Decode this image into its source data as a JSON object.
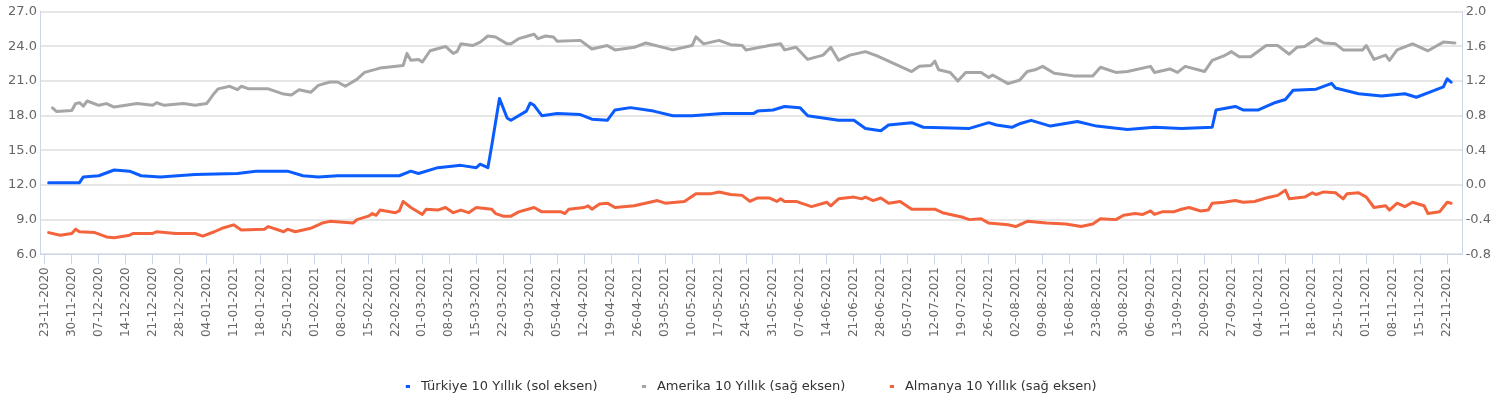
{
  "chart_data": {
    "type": "line",
    "legend": "bottom",
    "grid": "y",
    "line_style": "solid",
    "xlim": [
      "2020-11-22",
      "2021-11-26"
    ],
    "xticks": [
      {
        "value": "2020-11-23",
        "label": "23-11-2020"
      },
      {
        "value": "2020-11-30",
        "label": "30-11-2020"
      },
      {
        "value": "2020-12-07",
        "label": "07-12-2020"
      },
      {
        "value": "2020-12-14",
        "label": "14-12-2020"
      },
      {
        "value": "2020-12-21",
        "label": "21-12-2020"
      },
      {
        "value": "2020-12-28",
        "label": "28-12-2020"
      },
      {
        "value": "2021-01-04",
        "label": "04-01-2021"
      },
      {
        "value": "2021-01-11",
        "label": "11-01-2021"
      },
      {
        "value": "2021-01-18",
        "label": "18-01-2021"
      },
      {
        "value": "2021-01-25",
        "label": "25-01-2021"
      },
      {
        "value": "2021-02-01",
        "label": "01-02-2021"
      },
      {
        "value": "2021-02-08",
        "label": "08-02-2021"
      },
      {
        "value": "2021-02-15",
        "label": "15-02-2021"
      },
      {
        "value": "2021-02-22",
        "label": "22-02-2021"
      },
      {
        "value": "2021-03-01",
        "label": "01-03-2021"
      },
      {
        "value": "2021-03-08",
        "label": "08-03-2021"
      },
      {
        "value": "2021-03-15",
        "label": "15-03-2021"
      },
      {
        "value": "2021-03-22",
        "label": "22-03-2021"
      },
      {
        "value": "2021-03-29",
        "label": "29-03-2021"
      },
      {
        "value": "2021-04-05",
        "label": "05-04-2021"
      },
      {
        "value": "2021-04-12",
        "label": "12-04-2021"
      },
      {
        "value": "2021-04-19",
        "label": "19-04-2021"
      },
      {
        "value": "2021-04-26",
        "label": "26-04-2021"
      },
      {
        "value": "2021-05-03",
        "label": "03-05-2021"
      },
      {
        "value": "2021-05-10",
        "label": "10-05-2021"
      },
      {
        "value": "2021-05-17",
        "label": "17-05-2021"
      },
      {
        "value": "2021-05-24",
        "label": "24-05-2021"
      },
      {
        "value": "2021-05-31",
        "label": "31-05-2021"
      },
      {
        "value": "2021-06-07",
        "label": "07-06-2021"
      },
      {
        "value": "2021-06-14",
        "label": "14-06-2021"
      },
      {
        "value": "2021-06-21",
        "label": "21-06-2021"
      },
      {
        "value": "2021-06-28",
        "label": "28-06-2021"
      },
      {
        "value": "2021-07-05",
        "label": "05-07-2021"
      },
      {
        "value": "2021-07-12",
        "label": "12-07-2021"
      },
      {
        "value": "2021-07-19",
        "label": "19-07-2021"
      },
      {
        "value": "2021-07-26",
        "label": "26-07-2021"
      },
      {
        "value": "2021-08-02",
        "label": "02-08-2021"
      },
      {
        "value": "2021-08-09",
        "label": "09-08-2021"
      },
      {
        "value": "2021-08-16",
        "label": "16-08-2021"
      },
      {
        "value": "2021-08-23",
        "label": "23-08-2021"
      },
      {
        "value": "2021-08-30",
        "label": "30-08-2021"
      },
      {
        "value": "2021-09-06",
        "label": "06-09-2021"
      },
      {
        "value": "2021-09-13",
        "label": "13-09-2021"
      },
      {
        "value": "2021-09-20",
        "label": "20-09-2021"
      },
      {
        "value": "2021-09-27",
        "label": "27-09-2021"
      },
      {
        "value": "2021-10-04",
        "label": "04-10-2021"
      },
      {
        "value": "2021-10-11",
        "label": "11-10-2021"
      },
      {
        "value": "2021-10-18",
        "label": "18-10-2021"
      },
      {
        "value": "2021-10-25",
        "label": "25-10-2021"
      },
      {
        "value": "2021-11-01",
        "label": "01-11-2021"
      },
      {
        "value": "2021-11-08",
        "label": "08-11-2021"
      },
      {
        "value": "2021-11-15",
        "label": "15-11-2021"
      },
      {
        "value": "2021-11-22",
        "label": "22-11-2021"
      }
    ],
    "ylim": [
      6,
      27
    ],
    "yticks": [
      {
        "value": 6,
        "label": "6.0"
      },
      {
        "value": 9,
        "label": "9.0"
      },
      {
        "value": 12,
        "label": "12.0"
      },
      {
        "value": 15,
        "label": "15.0"
      },
      {
        "value": 18,
        "label": "18.0"
      },
      {
        "value": 21,
        "label": "21.0"
      },
      {
        "value": 24,
        "label": "24.0"
      },
      {
        "value": 27,
        "label": "27.0"
      }
    ],
    "y2lim": [
      -0.8,
      2.0
    ],
    "y2ticks": [
      {
        "value": -0.8,
        "label": "-0.8"
      },
      {
        "value": -0.4,
        "label": "-0.4"
      },
      {
        "value": 0,
        "label": "0.0"
      },
      {
        "value": 0.4,
        "label": "0.4"
      },
      {
        "value": 0.8,
        "label": "0.8"
      },
      {
        "value": 1.2,
        "label": "1.2"
      },
      {
        "value": 1.6,
        "label": "1.6"
      },
      {
        "value": 2.0,
        "label": "2.0"
      }
    ],
    "series": [
      {
        "name": "Türkiye 10 Yıllık (sol eksen)",
        "color": "#0a5cff",
        "x": [
          "2020-11-24",
          "2020-12-02",
          "2020-12-03",
          "2020-12-07",
          "2020-12-11",
          "2020-12-15",
          "2020-12-18",
          "2020-12-23",
          "2021-01-01",
          "2021-01-12",
          "2021-01-17",
          "2021-01-25",
          "2021-01-29",
          "2021-02-02",
          "2021-02-07",
          "2021-02-23",
          "2021-02-26",
          "2021-02-28",
          "2021-03-05",
          "2021-03-11",
          "2021-03-15",
          "2021-03-16",
          "2021-03-18",
          "2021-03-19",
          "2021-03-21",
          "2021-03-23",
          "2021-03-24",
          "2021-03-28",
          "2021-03-29",
          "2021-03-30",
          "2021-04-01",
          "2021-04-05",
          "2021-04-11",
          "2021-04-14",
          "2021-04-18",
          "2021-04-20",
          "2021-04-24",
          "2021-04-30",
          "2021-05-05",
          "2021-05-10",
          "2021-05-18",
          "2021-05-26",
          "2021-05-27",
          "2021-05-31",
          "2021-06-03",
          "2021-06-07",
          "2021-06-09",
          "2021-06-13",
          "2021-06-17",
          "2021-06-21",
          "2021-06-24",
          "2021-06-28",
          "2021-06-30",
          "2021-07-06",
          "2021-07-09",
          "2021-07-21",
          "2021-07-26",
          "2021-07-28",
          "2021-08-01",
          "2021-08-03",
          "2021-08-06",
          "2021-08-11",
          "2021-08-18",
          "2021-08-23",
          "2021-08-31",
          "2021-09-07",
          "2021-09-14",
          "2021-09-22",
          "2021-09-23",
          "2021-09-28",
          "2021-09-30",
          "2021-10-04",
          "2021-10-08",
          "2021-10-11",
          "2021-10-13",
          "2021-10-19",
          "2021-10-23",
          "2021-10-24",
          "2021-10-30",
          "2021-11-05",
          "2021-11-11",
          "2021-11-14",
          "2021-11-18",
          "2021-11-21",
          "2021-11-22",
          "2021-11-23"
        ],
        "values": [
          12.2,
          12.2,
          12.7,
          12.8,
          13.3,
          13.2,
          12.8,
          12.7,
          12.9,
          13.0,
          13.2,
          13.2,
          12.8,
          12.7,
          12.8,
          12.8,
          13.2,
          13.0,
          13.5,
          13.7,
          13.5,
          13.8,
          13.5,
          15.4,
          19.5,
          17.8,
          17.6,
          18.4,
          19.1,
          18.9,
          18.0,
          18.2,
          18.1,
          17.7,
          17.6,
          18.5,
          18.7,
          18.4,
          18.0,
          18.0,
          18.2,
          18.2,
          18.4,
          18.5,
          18.8,
          18.7,
          18.0,
          17.8,
          17.6,
          17.6,
          16.9,
          16.7,
          17.2,
          17.4,
          17.0,
          16.9,
          17.4,
          17.2,
          17.0,
          17.3,
          17.6,
          17.1,
          17.5,
          17.1,
          16.8,
          17.0,
          16.9,
          17.0,
          18.5,
          18.8,
          18.5,
          18.5,
          19.1,
          19.4,
          20.2,
          20.3,
          20.8,
          20.4,
          19.9,
          19.7,
          19.9,
          19.6,
          20.1,
          20.5,
          21.2,
          20.9
        ]
      },
      {
        "name": "Amerika 10 Yıllık (sağ eksen)",
        "color": "#a6a6a6",
        "axis": "y2",
        "x": [
          "2020-11-25",
          "2020-11-26",
          "2020-11-30",
          "2020-12-01",
          "2020-12-02",
          "2020-12-03",
          "2020-12-04",
          "2020-12-07",
          "2020-12-09",
          "2020-12-11",
          "2020-12-17",
          "2020-12-21",
          "2020-12-22",
          "2020-12-24",
          "2020-12-29",
          "2021-01-01",
          "2021-01-04",
          "2021-01-06",
          "2021-01-07",
          "2021-01-10",
          "2021-01-12",
          "2021-01-13",
          "2021-01-15",
          "2021-01-20",
          "2021-01-24",
          "2021-01-26",
          "2021-01-28",
          "2021-01-31",
          "2021-02-02",
          "2021-02-05",
          "2021-02-07",
          "2021-02-09",
          "2021-02-12",
          "2021-02-14",
          "2021-02-18",
          "2021-02-24",
          "2021-02-25",
          "2021-02-26",
          "2021-02-28",
          "2021-03-01",
          "2021-03-03",
          "2021-03-07",
          "2021-03-09",
          "2021-03-10",
          "2021-03-11",
          "2021-03-14",
          "2021-03-16",
          "2021-03-18",
          "2021-03-20",
          "2021-03-23",
          "2021-03-24",
          "2021-03-26",
          "2021-03-30",
          "2021-03-31",
          "2021-04-02",
          "2021-04-04",
          "2021-04-05",
          "2021-04-11",
          "2021-04-14",
          "2021-04-18",
          "2021-04-20",
          "2021-04-25",
          "2021-04-28",
          "2021-05-05",
          "2021-05-10",
          "2021-05-11",
          "2021-05-13",
          "2021-05-17",
          "2021-05-20",
          "2021-05-23",
          "2021-05-24",
          "2021-05-30",
          "2021-06-02",
          "2021-06-03",
          "2021-06-06",
          "2021-06-09",
          "2021-06-13",
          "2021-06-15",
          "2021-06-17",
          "2021-06-20",
          "2021-06-24",
          "2021-06-27",
          "2021-07-06",
          "2021-07-08",
          "2021-07-11",
          "2021-07-12",
          "2021-07-13",
          "2021-07-16",
          "2021-07-18",
          "2021-07-20",
          "2021-07-24",
          "2021-07-26",
          "2021-07-27",
          "2021-07-31",
          "2021-08-03",
          "2021-08-05",
          "2021-08-07",
          "2021-08-09",
          "2021-08-12",
          "2021-08-17",
          "2021-08-22",
          "2021-08-24",
          "2021-08-28",
          "2021-08-31",
          "2021-09-06",
          "2021-09-07",
          "2021-09-11",
          "2021-09-13",
          "2021-09-15",
          "2021-09-20",
          "2021-09-22",
          "2021-09-25",
          "2021-09-27",
          "2021-09-29",
          "2021-10-02",
          "2021-10-06",
          "2021-10-09",
          "2021-10-12",
          "2021-10-14",
          "2021-10-16",
          "2021-10-19",
          "2021-10-21",
          "2021-10-24",
          "2021-10-26",
          "2021-10-31",
          "2021-11-01",
          "2021-11-03",
          "2021-11-06",
          "2021-11-07",
          "2021-11-09",
          "2021-11-13",
          "2021-11-17",
          "2021-11-21",
          "2021-11-24"
        ],
        "values": [
          0.89,
          0.85,
          0.86,
          0.94,
          0.95,
          0.91,
          0.97,
          0.92,
          0.94,
          0.9,
          0.94,
          0.92,
          0.95,
          0.92,
          0.94,
          0.92,
          0.94,
          1.06,
          1.11,
          1.14,
          1.1,
          1.14,
          1.11,
          1.11,
          1.05,
          1.04,
          1.1,
          1.07,
          1.15,
          1.19,
          1.19,
          1.14,
          1.22,
          1.3,
          1.35,
          1.38,
          1.52,
          1.44,
          1.45,
          1.42,
          1.55,
          1.6,
          1.52,
          1.54,
          1.63,
          1.61,
          1.65,
          1.72,
          1.71,
          1.63,
          1.63,
          1.69,
          1.74,
          1.69,
          1.72,
          1.71,
          1.66,
          1.67,
          1.57,
          1.61,
          1.56,
          1.59,
          1.64,
          1.56,
          1.61,
          1.71,
          1.63,
          1.67,
          1.62,
          1.61,
          1.56,
          1.61,
          1.63,
          1.56,
          1.59,
          1.45,
          1.5,
          1.59,
          1.44,
          1.5,
          1.54,
          1.49,
          1.31,
          1.37,
          1.38,
          1.43,
          1.33,
          1.3,
          1.2,
          1.3,
          1.3,
          1.24,
          1.27,
          1.17,
          1.21,
          1.31,
          1.33,
          1.37,
          1.29,
          1.26,
          1.26,
          1.36,
          1.3,
          1.31,
          1.37,
          1.3,
          1.34,
          1.3,
          1.37,
          1.31,
          1.44,
          1.49,
          1.54,
          1.48,
          1.48,
          1.61,
          1.61,
          1.51,
          1.59,
          1.6,
          1.69,
          1.64,
          1.63,
          1.56,
          1.56,
          1.61,
          1.45,
          1.5,
          1.44,
          1.56,
          1.63,
          1.55,
          1.65,
          1.64
        ]
      },
      {
        "name": "Almanya 10 Yıllık (sağ eksen)",
        "color": "#f4643c",
        "axis": "y2",
        "x": [
          "2020-11-24",
          "2020-11-27",
          "2020-11-30",
          "2020-12-01",
          "2020-12-02",
          "2020-12-06",
          "2020-12-09",
          "2020-12-11",
          "2020-12-15",
          "2020-12-16",
          "2020-12-21",
          "2020-12-22",
          "2020-12-27",
          "2021-01-01",
          "2021-01-03",
          "2021-01-06",
          "2021-01-08",
          "2021-01-11",
          "2021-01-13",
          "2021-01-19",
          "2021-01-20",
          "2021-01-24",
          "2021-01-25",
          "2021-01-27",
          "2021-01-31",
          "2021-02-03",
          "2021-02-05",
          "2021-02-11",
          "2021-02-12",
          "2021-02-15",
          "2021-02-16",
          "2021-02-17",
          "2021-02-18",
          "2021-02-22",
          "2021-02-23",
          "2021-02-24",
          "2021-02-26",
          "2021-03-01",
          "2021-03-02",
          "2021-03-05",
          "2021-03-07",
          "2021-03-09",
          "2021-03-11",
          "2021-03-13",
          "2021-03-15",
          "2021-03-19",
          "2021-03-20",
          "2021-03-22",
          "2021-03-24",
          "2021-03-26",
          "2021-03-30",
          "2021-04-01",
          "2021-04-06",
          "2021-04-07",
          "2021-04-08",
          "2021-04-12",
          "2021-04-13",
          "2021-04-14",
          "2021-04-16",
          "2021-04-18",
          "2021-04-20",
          "2021-04-25",
          "2021-05-01",
          "2021-05-03",
          "2021-05-08",
          "2021-05-11",
          "2021-05-15",
          "2021-05-17",
          "2021-05-20",
          "2021-05-23",
          "2021-05-25",
          "2021-05-27",
          "2021-05-30",
          "2021-06-01",
          "2021-06-02",
          "2021-06-03",
          "2021-06-06",
          "2021-06-10",
          "2021-06-14",
          "2021-06-15",
          "2021-06-17",
          "2021-06-21",
          "2021-06-23",
          "2021-06-24",
          "2021-06-26",
          "2021-06-28",
          "2021-06-30",
          "2021-07-03",
          "2021-07-06",
          "2021-07-12",
          "2021-07-14",
          "2021-07-19",
          "2021-07-21",
          "2021-07-24",
          "2021-07-26",
          "2021-07-31",
          "2021-08-02",
          "2021-08-05",
          "2021-08-10",
          "2021-08-15",
          "2021-08-19",
          "2021-08-22",
          "2021-08-24",
          "2021-08-28",
          "2021-08-30",
          "2021-09-02",
          "2021-09-04",
          "2021-09-06",
          "2021-09-07",
          "2021-09-09",
          "2021-09-12",
          "2021-09-14",
          "2021-09-16",
          "2021-09-19",
          "2021-09-21",
          "2021-09-22",
          "2021-09-25",
          "2021-09-28",
          "2021-09-30",
          "2021-10-03",
          "2021-10-06",
          "2021-10-09",
          "2021-10-11",
          "2021-10-12",
          "2021-10-16",
          "2021-10-18",
          "2021-10-19",
          "2021-10-21",
          "2021-10-24",
          "2021-10-26",
          "2021-10-27",
          "2021-10-30",
          "2021-11-01",
          "2021-11-03",
          "2021-11-06",
          "2021-11-07",
          "2021-11-09",
          "2021-11-11",
          "2021-11-13",
          "2021-11-16",
          "2021-11-17",
          "2021-11-20",
          "2021-11-22",
          "2021-11-23"
        ],
        "values": [
          -0.55,
          -0.58,
          -0.56,
          -0.51,
          -0.54,
          -0.55,
          -0.6,
          -0.61,
          -0.58,
          -0.56,
          -0.56,
          -0.54,
          -0.56,
          -0.56,
          -0.59,
          -0.54,
          -0.5,
          -0.46,
          -0.52,
          -0.51,
          -0.48,
          -0.54,
          -0.51,
          -0.54,
          -0.5,
          -0.44,
          -0.42,
          -0.44,
          -0.4,
          -0.36,
          -0.33,
          -0.35,
          -0.29,
          -0.32,
          -0.3,
          -0.19,
          -0.26,
          -0.34,
          -0.28,
          -0.29,
          -0.26,
          -0.32,
          -0.29,
          -0.32,
          -0.26,
          -0.28,
          -0.33,
          -0.36,
          -0.36,
          -0.31,
          -0.26,
          -0.31,
          -0.31,
          -0.33,
          -0.28,
          -0.26,
          -0.24,
          -0.28,
          -0.22,
          -0.21,
          -0.26,
          -0.24,
          -0.18,
          -0.21,
          -0.19,
          -0.1,
          -0.1,
          -0.08,
          -0.11,
          -0.12,
          -0.19,
          -0.15,
          -0.15,
          -0.19,
          -0.16,
          -0.19,
          -0.19,
          -0.25,
          -0.2,
          -0.24,
          -0.16,
          -0.14,
          -0.16,
          -0.14,
          -0.18,
          -0.15,
          -0.21,
          -0.19,
          -0.28,
          -0.28,
          -0.32,
          -0.37,
          -0.4,
          -0.39,
          -0.44,
          -0.46,
          -0.48,
          -0.42,
          -0.44,
          -0.45,
          -0.48,
          -0.45,
          -0.39,
          -0.4,
          -0.35,
          -0.33,
          -0.34,
          -0.3,
          -0.34,
          -0.31,
          -0.31,
          -0.28,
          -0.26,
          -0.3,
          -0.29,
          -0.21,
          -0.2,
          -0.18,
          -0.2,
          -0.19,
          -0.15,
          -0.12,
          -0.06,
          -0.16,
          -0.14,
          -0.09,
          -0.11,
          -0.08,
          -0.09,
          -0.16,
          -0.1,
          -0.09,
          -0.14,
          -0.26,
          -0.24,
          -0.29,
          -0.21,
          -0.25,
          -0.2,
          -0.24,
          -0.33,
          -0.31,
          -0.2,
          -0.21
        ]
      }
    ]
  }
}
